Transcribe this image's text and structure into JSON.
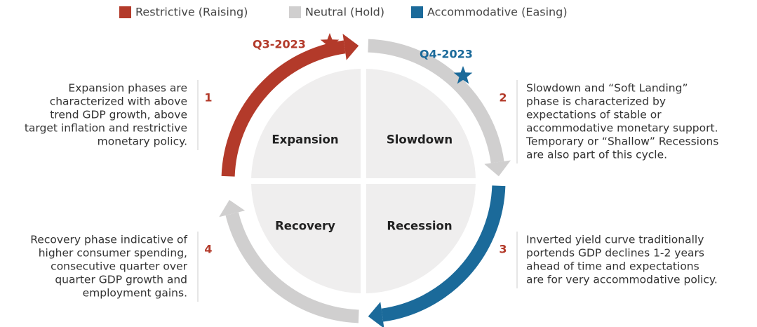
{
  "legend": [
    {
      "label": "Restrictive (Raising)",
      "color": "#b33a2a"
    },
    {
      "label": "Neutral (Hold)",
      "color": "#d0cfcf"
    },
    {
      "label": "Accommodative (Easing)",
      "color": "#1b6a9a"
    }
  ],
  "markers": [
    {
      "label": "Q3-2023",
      "color": "#b33a2a"
    },
    {
      "label": "Q4-2023",
      "color": "#1b6a9a"
    }
  ],
  "quadrants": [
    {
      "label": "Expansion",
      "number": "1",
      "description": [
        "Expansion phases are",
        "characterized with above",
        "trend GDP growth, above",
        "target inflation and restrictive",
        "monetary policy."
      ]
    },
    {
      "label": "Slowdown",
      "number": "2",
      "description": [
        "Slowdown and “Soft Landing”",
        "phase is characterized by",
        "expectations of stable or",
        "accommodative monetary support.",
        "Temporary or “Shallow” Recessions",
        "are also part of this cycle."
      ]
    },
    {
      "label": "Recession",
      "number": "3",
      "description": [
        "Inverted yield curve traditionally",
        "portends GDP declines 1-2 years",
        "ahead of time and expectations",
        "are for very accommodative policy."
      ]
    },
    {
      "label": "Recovery",
      "number": "4",
      "description": [
        "Recovery phase indicative of",
        "higher consumer spending,",
        "consecutive quarter over",
        "quarter GDP growth and",
        "employment gains."
      ]
    }
  ]
}
